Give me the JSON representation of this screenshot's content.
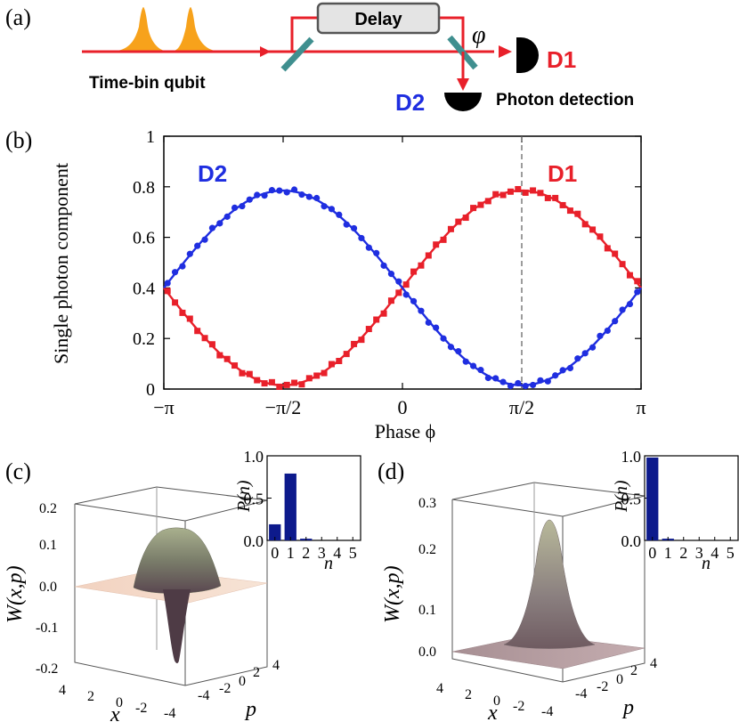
{
  "panel_a": {
    "label": "(a)",
    "delay_label": "Delay",
    "phi_label": "φ",
    "qubit_label": "Time-bin qubit",
    "d1_label": "D1",
    "d2_label": "D2",
    "detection_label": "Photon detection"
  },
  "colors": {
    "d1": "#e8202a",
    "d2": "#1f2ee0",
    "beam": "#e8202a",
    "pulse": "#f7a21b",
    "splitter": "#3f8f8f",
    "bar": "#0d1a8c"
  },
  "chart_data": [
    {
      "panel": "(b)",
      "type": "scatter",
      "xlabel": "Phase ϕ",
      "ylabel": "Single photon component",
      "xlim": [
        -3.1416,
        3.1416
      ],
      "ylim": [
        0,
        1
      ],
      "xtick_values": [
        -3.1416,
        -1.5708,
        0,
        1.5708,
        3.1416
      ],
      "xticks": [
        "−π",
        "−π/2",
        "0",
        "π/2",
        "π"
      ],
      "yticks": [
        "0",
        "0.2",
        "0.4",
        "0.6",
        "0.8",
        "1"
      ],
      "ytick_values": [
        0,
        0.2,
        0.4,
        0.6,
        0.8,
        1
      ],
      "vline_x": 1.5708,
      "series": [
        {
          "name": "D1",
          "label": "D1",
          "color": "#e8202a",
          "marker": "square",
          "model": {
            "offset": 0.4,
            "amplitude": 0.385,
            "phase": -1.5708
          }
        },
        {
          "name": "D2",
          "label": "D2",
          "color": "#1f2ee0",
          "marker": "circle",
          "model": {
            "offset": 0.4,
            "amplitude": 0.385,
            "phase": 1.5708
          }
        }
      ]
    },
    {
      "panel": "(c)",
      "type": "surface",
      "zlabel": "W(x,p)",
      "xlabel": "x",
      "plabel": "p",
      "zticks": [
        "0.2",
        "0.1",
        "0.0",
        "-0.1",
        "-0.2"
      ],
      "xticks": [
        "4",
        "2",
        "0",
        "-2",
        "-4"
      ],
      "pticks": [
        "-4",
        "-2",
        "0",
        "2",
        "4"
      ],
      "description": "single-photon Wigner function with negative dip",
      "inset": {
        "type": "bar",
        "ylabel": "P(n)",
        "xlabel": "n",
        "categories": [
          "0",
          "1",
          "2",
          "3",
          "4",
          "5"
        ],
        "values": [
          0.19,
          0.79,
          0.02,
          0,
          0,
          0
        ],
        "yticks": [
          "0.0",
          "0.5",
          "1.0"
        ]
      }
    },
    {
      "panel": "(d)",
      "type": "surface",
      "zlabel": "W(x,p)",
      "xlabel": "x",
      "plabel": "p",
      "zticks": [
        "0.3",
        "0.2",
        "0.1",
        "0.0"
      ],
      "xticks": [
        "4",
        "2",
        "0",
        "-2",
        "-4"
      ],
      "pticks": [
        "-4",
        "-2",
        "0",
        "2",
        "4"
      ],
      "description": "vacuum Wigner function (Gaussian peak)",
      "inset": {
        "type": "bar",
        "ylabel": "P(n)",
        "xlabel": "n",
        "categories": [
          "0",
          "1",
          "2",
          "3",
          "4",
          "5"
        ],
        "values": [
          0.98,
          0.02,
          0,
          0,
          0,
          0
        ],
        "yticks": [
          "0.0",
          "0.5",
          "1.0"
        ]
      }
    }
  ]
}
